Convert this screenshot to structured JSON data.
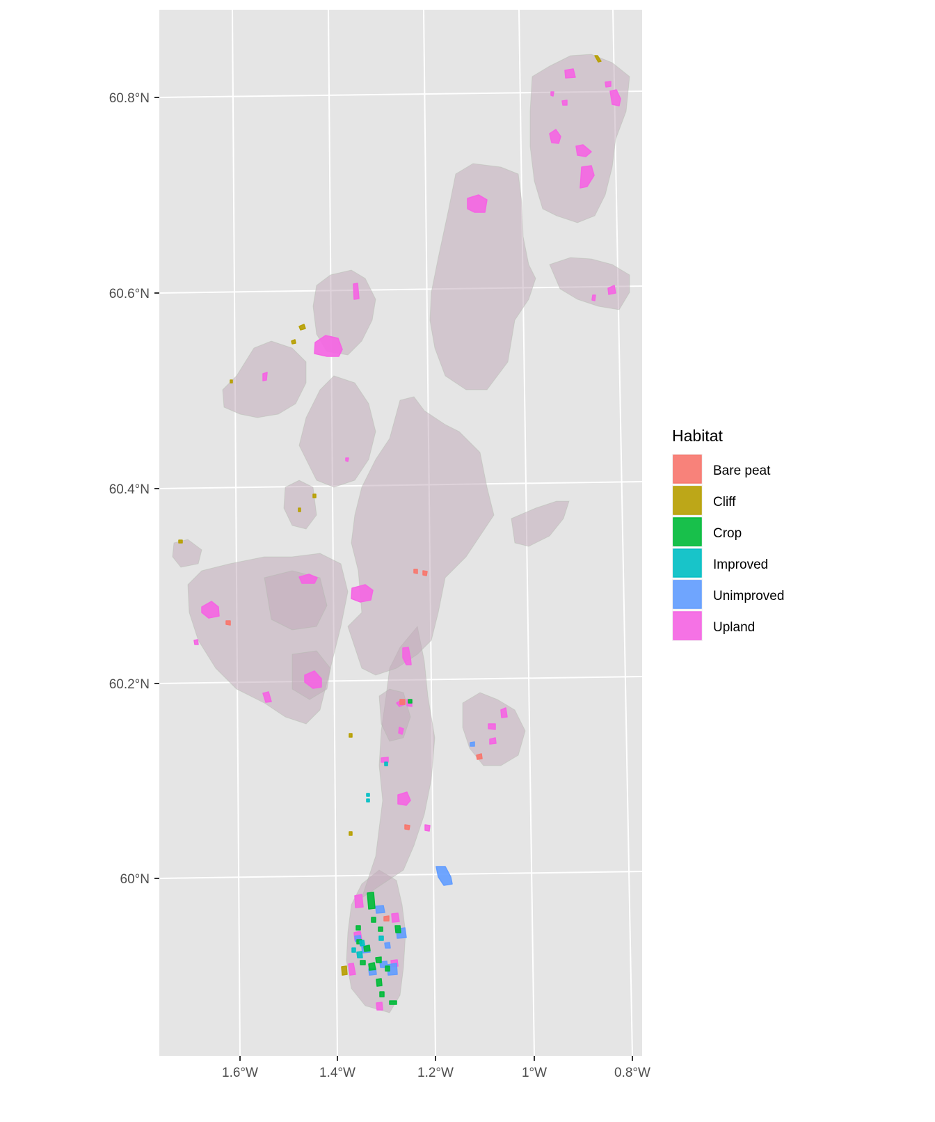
{
  "chart_data": {
    "type": "map",
    "x_ticks": [
      {
        "label": "1.6°W",
        "lon": -1.6
      },
      {
        "label": "1.4°W",
        "lon": -1.4
      },
      {
        "label": "1.2°W",
        "lon": -1.2
      },
      {
        "label": "1°W",
        "lon": -1.0
      },
      {
        "label": "0.8°W",
        "lon": -0.8
      }
    ],
    "y_ticks": [
      {
        "label": "60.8°N",
        "lat": 60.8
      },
      {
        "label": "60.6°N",
        "lat": 60.6
      },
      {
        "label": "60.4°N",
        "lat": 60.4
      },
      {
        "label": "60.2°N",
        "lat": 60.2
      },
      {
        "label": "60°N",
        "lat": 60.0
      }
    ],
    "legend": {
      "title": "Habitat",
      "position": "right",
      "items": [
        {
          "label": "Bare peat",
          "color": "#F8766D"
        },
        {
          "label": "Cliff",
          "color": "#B79F00"
        },
        {
          "label": "Crop",
          "color": "#00BA38"
        },
        {
          "label": "Improved",
          "color": "#00BFC4"
        },
        {
          "label": "Unimproved",
          "color": "#619CFF"
        },
        {
          "label": "Upland",
          "color": "#F564E3"
        }
      ]
    },
    "panel_background": "#E5E5E5",
    "grid_color": "#FFFFFF",
    "land_color": "#BFA7B8"
  }
}
